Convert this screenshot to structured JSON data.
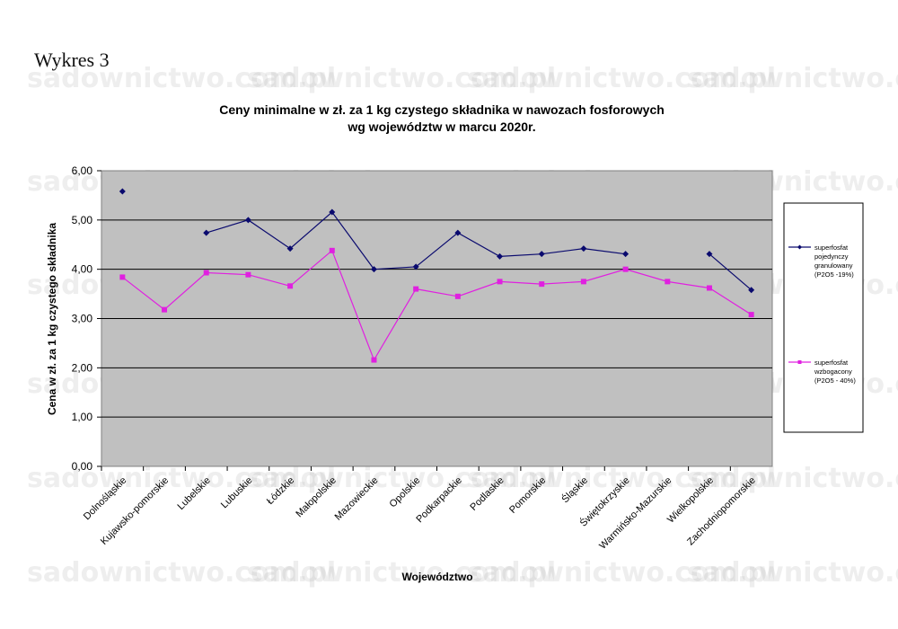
{
  "heading": "Wykres 3",
  "watermark": "sadownictwo.com.pl",
  "chart_data": {
    "type": "line",
    "title": "Ceny minimalne  w zł. za 1 kg czystego składnika w nawozach fosforowych",
    "subtitle": "wg województw w marcu 2020r.",
    "xlabel": "Województwo",
    "ylabel": "Cena w zł. za 1 kg czystego składnika",
    "ylim": [
      0,
      6
    ],
    "yticks": [
      "0,00",
      "1,00",
      "2,00",
      "3,00",
      "4,00",
      "5,00",
      "6,00"
    ],
    "grid": true,
    "legend_position": "right",
    "categories": [
      "Dolnośląskie",
      "Kujawsko-pomorskie",
      "Lubelskie",
      "Lubuskie",
      "Łódzkie",
      "Małopolskie",
      "Mazowieckie",
      "Opolskie",
      "Podkarpackie",
      "Podlaskie",
      "Pomorskie",
      "Śląskie",
      "Świętokrzyskie",
      "Warmińsko-Mazurskie",
      "Wielkopolskie",
      "Zachodniopomorskie"
    ],
    "series": [
      {
        "name_lines": [
          "superfosfat",
          "pojedynczy",
          "granulowany",
          "(P2O5 -19%)"
        ],
        "color": "#0a0a6e",
        "marker": "diamond",
        "values": [
          5.58,
          null,
          4.74,
          5.0,
          4.42,
          5.16,
          4.0,
          4.05,
          4.74,
          4.26,
          4.31,
          4.42,
          4.31,
          null,
          4.31,
          3.58
        ]
      },
      {
        "name_lines": [
          "superfosfat",
          "wzbogacony",
          "(P2O5 - 40%)"
        ],
        "color": "#e020e0",
        "marker": "square",
        "values": [
          3.84,
          3.18,
          3.93,
          3.89,
          3.66,
          4.38,
          2.16,
          3.6,
          3.45,
          3.75,
          3.7,
          3.75,
          4.0,
          3.75,
          3.62,
          3.08
        ]
      }
    ]
  }
}
